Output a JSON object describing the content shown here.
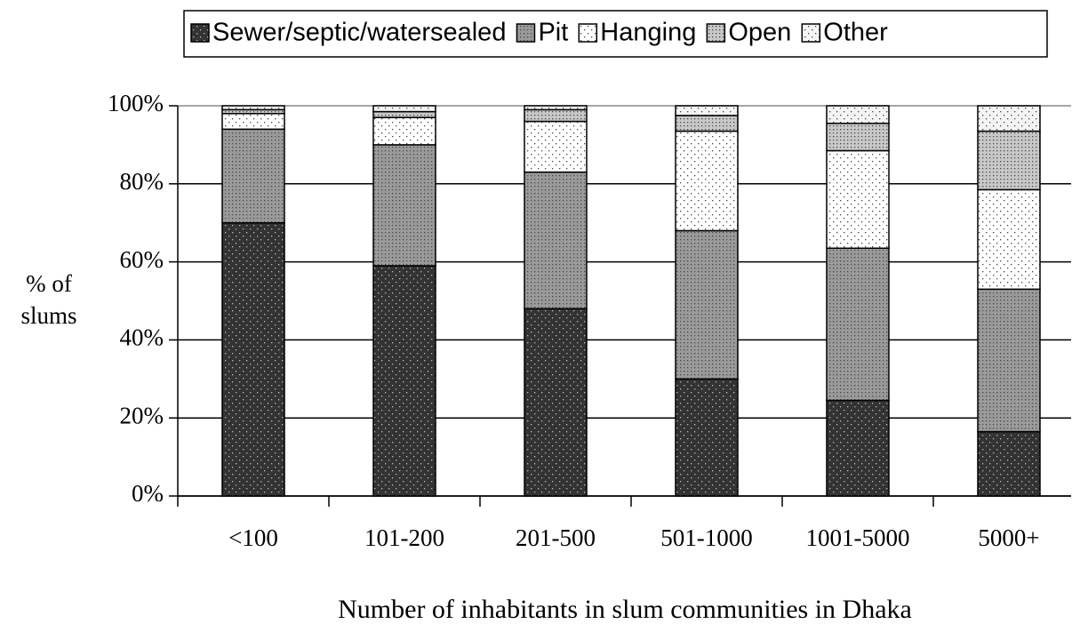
{
  "chart_data": {
    "type": "stacked_bar",
    "xlabel": "Number of inhabitants in slum communities in Dhaka",
    "ylabel": [
      "% of",
      "slums"
    ],
    "categories": [
      "<100",
      "101-200",
      "201-500",
      "501-1000",
      "1001-5000",
      "5000+"
    ],
    "series": [
      {
        "name": "Sewer/septic/watersealed",
        "color": "#333333",
        "values": [
          70,
          59,
          48,
          30,
          24.5,
          16.5
        ]
      },
      {
        "name": "Pit",
        "color": "#9a9a9a",
        "values": [
          24,
          31,
          35,
          38,
          39,
          36.5
        ]
      },
      {
        "name": "Hanging",
        "color": "#ffffff",
        "values": [
          4,
          7,
          13,
          25.5,
          25,
          25.5
        ]
      },
      {
        "name": "Open",
        "color": "#c8c8c8",
        "values": [
          1,
          1.5,
          3,
          4,
          7,
          15
        ]
      },
      {
        "name": "Other",
        "color": "#f4f4f4",
        "values": [
          1,
          1.5,
          1,
          2.5,
          4.5,
          6.5
        ]
      }
    ],
    "ylim": [
      0,
      100
    ],
    "yticks": [
      {
        "value": 0,
        "label": "0%"
      },
      {
        "value": 20,
        "label": "20%"
      },
      {
        "value": 40,
        "label": "40%"
      },
      {
        "value": 60,
        "label": "60%"
      },
      {
        "value": 80,
        "label": "80%"
      },
      {
        "value": 100,
        "label": "100%"
      }
    ],
    "grid": true,
    "legend": "top"
  }
}
